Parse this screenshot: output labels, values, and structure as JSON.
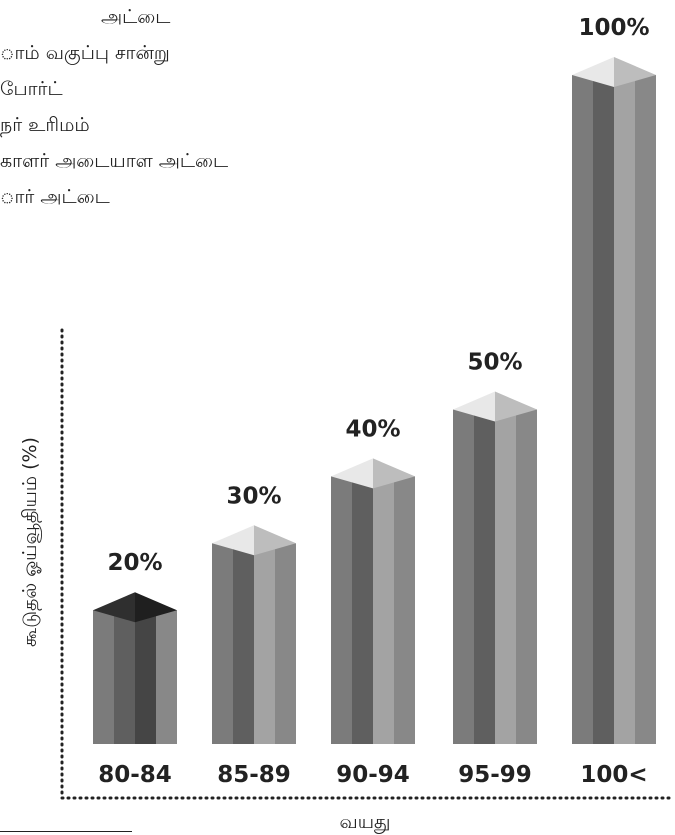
{
  "doc": {
    "lines": [
      "அட்டை",
      "ாம் வகுப்பு சான்று",
      "போர்ட்",
      "நர் உரிமம்",
      "காளர் அடையாள அட்டை",
      "ார் அட்டை"
    ]
  },
  "chart_data": {
    "type": "bar",
    "title": "",
    "xlabel": "வயது",
    "ylabel": "கூடுதல் ஓய்வூதியம் (%)",
    "categories": [
      "80-84",
      "85-89",
      "90-94",
      "95-99",
      "100<"
    ],
    "values": [
      20,
      30,
      40,
      50,
      100
    ],
    "value_labels": [
      "20%",
      "30%",
      "40%",
      "50%",
      "100%"
    ],
    "ylim": [
      0,
      100
    ],
    "grid": false,
    "colors": {
      "bar_front_dark": "#6e6e6e",
      "bar_front_mid": "#8c8c8c",
      "bar_side": "#a9a9a9",
      "bar_top_light": "#e6e6e6",
      "bar_top_dark": "#3a3a3a",
      "axis": "#222222"
    }
  }
}
